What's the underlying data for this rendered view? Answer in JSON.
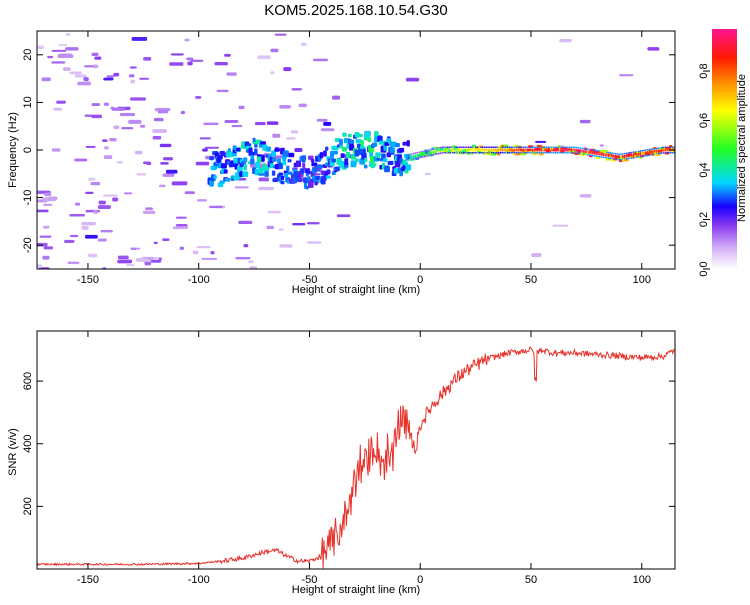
{
  "figure": {
    "title": "KOM5.2025.168.10.54.G30"
  },
  "colors": {
    "snr_line": "#e8312a",
    "background": "#ffffff",
    "axis": "#000000",
    "colormap": [
      "#ffffff",
      "#c8a8f0",
      "#9a55f0",
      "#3a00ff",
      "#00e5ff",
      "#33ff33",
      "#ffff00",
      "#ff8800",
      "#ff0000",
      "#ff1493"
    ]
  },
  "chart_data": [
    {
      "type": "heatmap",
      "title": "",
      "xlabel": "Height of straight line (km)",
      "ylabel": "Frequency (Hz)",
      "xlim": [
        -173,
        115
      ],
      "ylim": [
        -25,
        25
      ],
      "x_ticks": [
        -150,
        -100,
        -50,
        0,
        50,
        100
      ],
      "y_ticks": [
        -20,
        -10,
        0,
        10,
        20
      ],
      "colorbar": {
        "label": "Normalized spectral amplitude",
        "range": [
          0,
          0.97
        ],
        "ticks": [
          0,
          0.2,
          0.4,
          0.6,
          0.8
        ]
      },
      "ridge": {
        "description_points": [
          {
            "x": -90,
            "freq": -4,
            "amp": 0.35
          },
          {
            "x": -75,
            "freq": -1,
            "amp": 0.4
          },
          {
            "x": -55,
            "freq": -5,
            "amp": 0.3
          },
          {
            "x": -45,
            "freq": -4,
            "amp": 0.3
          },
          {
            "x": -35,
            "freq": 0,
            "amp": 0.4
          },
          {
            "x": -20,
            "freq": 0,
            "amp": 0.45
          },
          {
            "x": -10,
            "freq": -2,
            "amp": 0.35
          },
          {
            "x": 10,
            "freq": 0,
            "amp": 0.6
          },
          {
            "x": 30,
            "freq": 0,
            "amp": 0.7
          },
          {
            "x": 50,
            "freq": 0,
            "amp": 0.9
          },
          {
            "x": 70,
            "freq": 0,
            "amp": 0.95
          },
          {
            "x": 90,
            "freq": -1.5,
            "amp": 0.9
          },
          {
            "x": 110,
            "freq": 0,
            "amp": 0.85
          }
        ]
      }
    },
    {
      "type": "line",
      "title": "",
      "xlabel": "Height of straight line (km)",
      "ylabel": "SNR (v/v)",
      "xlim": [
        -173,
        115
      ],
      "ylim": [
        0,
        760
      ],
      "x_ticks": [
        -150,
        -100,
        -50,
        0,
        50,
        100
      ],
      "y_ticks": [
        200,
        400,
        600
      ],
      "series": [
        {
          "x": [
            -173,
            -150,
            -125,
            -100,
            -90,
            -80,
            -70,
            -65,
            -60,
            -55,
            -50,
            -45,
            -40,
            -35,
            -32,
            -30,
            -28,
            -25,
            -22,
            -20,
            -18,
            -15,
            -12,
            -10,
            -8,
            -5,
            -2,
            0,
            5,
            10,
            15,
            20,
            25,
            30,
            35,
            40,
            45,
            50,
            52,
            55,
            60,
            70,
            80,
            90,
            100,
            110,
            115
          ],
          "y": [
            15,
            15,
            15,
            18,
            25,
            35,
            55,
            60,
            40,
            25,
            25,
            40,
            80,
            150,
            200,
            270,
            300,
            330,
            380,
            400,
            350,
            330,
            360,
            450,
            500,
            430,
            380,
            460,
            520,
            560,
            600,
            630,
            650,
            670,
            680,
            690,
            695,
            700,
            690,
            700,
            690,
            690,
            685,
            680,
            675,
            680,
            700
          ]
        }
      ]
    }
  ]
}
